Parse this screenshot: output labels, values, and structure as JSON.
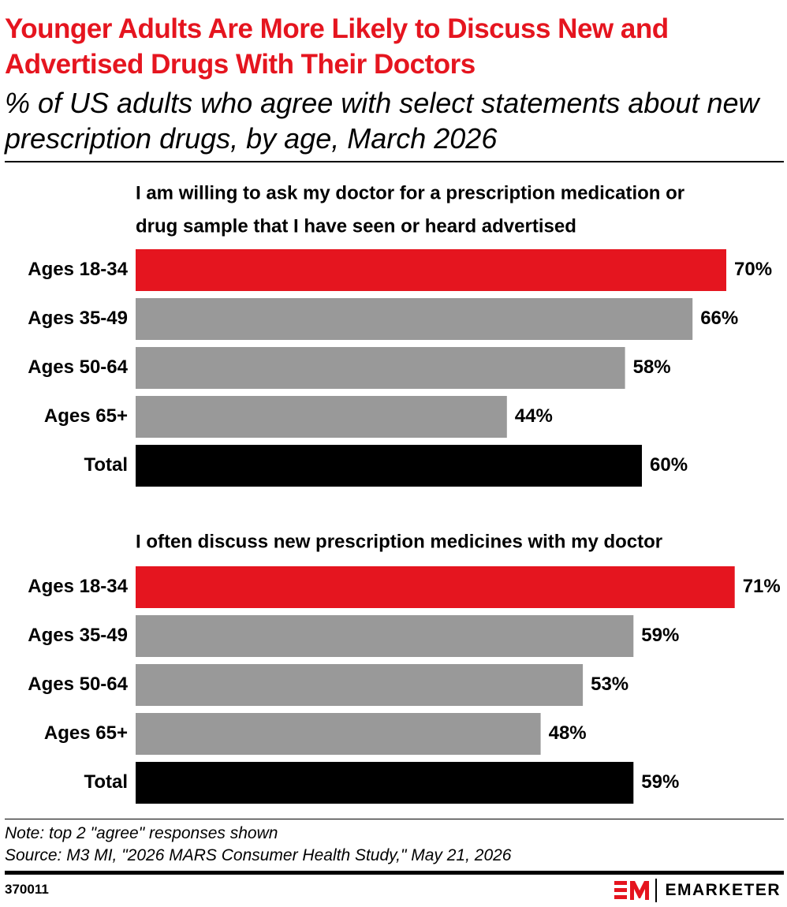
{
  "header": {
    "title": "Younger Adults Are More Likely to Discuss New and Advertised Drugs With Their Doctors",
    "subtitle": "% of US adults who agree with select statements about new prescription drugs, by age, March 2026"
  },
  "chart_data": [
    {
      "type": "bar",
      "orientation": "horizontal",
      "title": "I am willing to ask my doctor for a prescription medication or drug sample that I have seen or heard advertised",
      "title_lines": [
        "I am willing to ask my doctor for a prescription medication or",
        "drug sample that I have seen or heard advertised"
      ],
      "categories": [
        "Ages 18-34",
        "Ages 35-49",
        "Ages 50-64",
        "Ages 65+",
        "Total"
      ],
      "values": [
        70,
        66,
        58,
        44,
        60
      ],
      "value_labels": [
        "70%",
        "66%",
        "58%",
        "44%",
        "60%"
      ],
      "colors": [
        "#e5151f",
        "#999999",
        "#999999",
        "#999999",
        "#000000"
      ],
      "xlim": [
        0,
        100
      ]
    },
    {
      "type": "bar",
      "orientation": "horizontal",
      "title": "I often discuss new prescription medicines with my doctor",
      "title_lines": [
        "I often discuss new prescription medicines with my doctor"
      ],
      "categories": [
        "Ages 18-34",
        "Ages 35-49",
        "Ages 50-64",
        "Ages 65+",
        "Total"
      ],
      "values": [
        71,
        59,
        53,
        48,
        59
      ],
      "value_labels": [
        "71%",
        "59%",
        "53%",
        "48%",
        "59%"
      ],
      "colors": [
        "#e5151f",
        "#999999",
        "#999999",
        "#999999",
        "#000000"
      ],
      "xlim": [
        0,
        100
      ]
    }
  ],
  "footer": {
    "note": "Note: top 2 \"agree\" responses shown",
    "source": "Source: M3 MI, \"2026 MARS Consumer Health Study,\" May 21, 2026",
    "chart_id": "370011",
    "brand": "EMARKETER",
    "brand_mark_color": "#e5151f"
  }
}
